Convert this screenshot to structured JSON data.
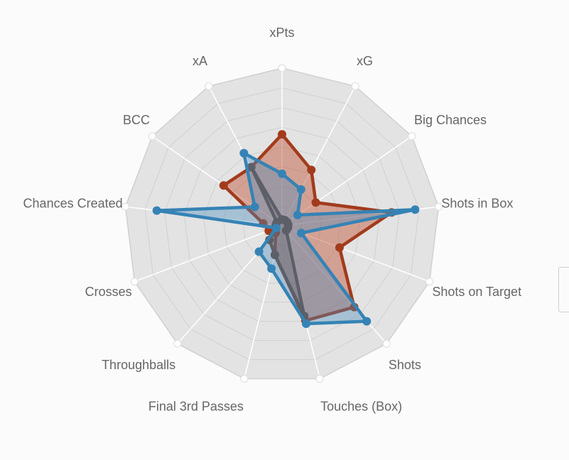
{
  "chart_data": {
    "type": "radar",
    "axes": [
      "xPts",
      "xG",
      "Big Chances",
      "Shots in Box",
      "Shots on Target",
      "Shots",
      "Touches (Box)",
      "Final 3rd Passes",
      "Throughballs",
      "Crosses",
      "Chances Created",
      "BCC",
      "xA"
    ],
    "rlim": [
      0,
      100
    ],
    "rings": 8,
    "grid": true,
    "series": [
      {
        "color": "#a23b1c",
        "fill": "rgba(190,80,50,0.45)",
        "values": [
          58,
          40,
          26,
          70,
          39,
          69,
          62,
          19,
          6,
          9,
          12,
          45,
          42
        ]
      },
      {
        "color": "#6b4434",
        "fill": "rgba(110,70,60,0.35)",
        "values": [
          4,
          4,
          4,
          4,
          4,
          4,
          59,
          19,
          12,
          4,
          4,
          4,
          42
        ]
      },
      {
        "color": "#3583b5",
        "fill": "rgba(70,140,190,0.38)",
        "values": [
          33,
          26,
          12,
          85,
          13,
          81,
          64,
          28,
          22,
          4,
          80,
          21,
          52
        ]
      }
    ],
    "axis_color": "#ffffff",
    "bg_color": "#e3e3e3",
    "grid_color": "#d0d0d0"
  }
}
